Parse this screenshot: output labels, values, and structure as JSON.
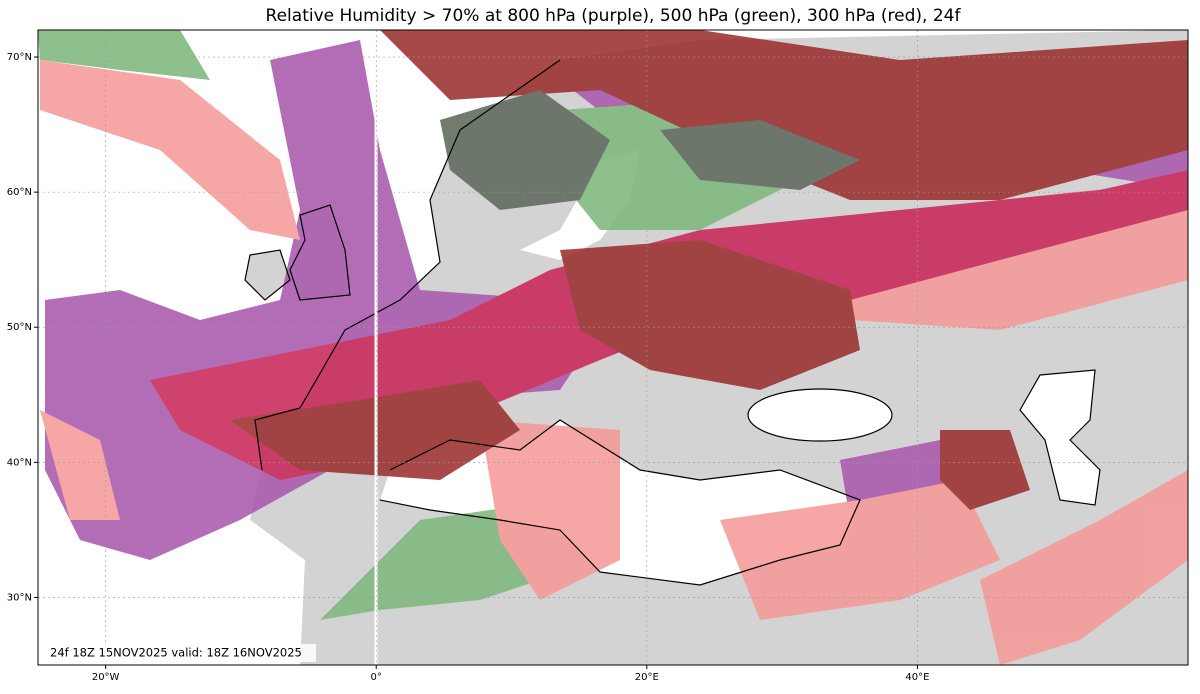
{
  "title": "Relative Humidity > 70% at 800 hPa (purple), 500 hPa (green), 300 hPa (red), 24f",
  "footer": "24f 18Z 15NOV2025 valid: 18Z 16NOV2025",
  "extent": {
    "lon": [
      -25,
      60
    ],
    "lat": [
      25,
      72
    ]
  },
  "lon_ticks": [
    {
      "value": -20,
      "label": "20°W"
    },
    {
      "value": 0,
      "label": "0°"
    },
    {
      "value": 20,
      "label": "20°E"
    },
    {
      "value": 40,
      "label": "40°E"
    }
  ],
  "lat_ticks": [
    {
      "value": 30,
      "label": "30°N"
    },
    {
      "value": 40,
      "label": "40°N"
    },
    {
      "value": 50,
      "label": "50°N"
    },
    {
      "value": 60,
      "label": "60°N"
    },
    {
      "value": 70,
      "label": "70°N"
    }
  ]
}
